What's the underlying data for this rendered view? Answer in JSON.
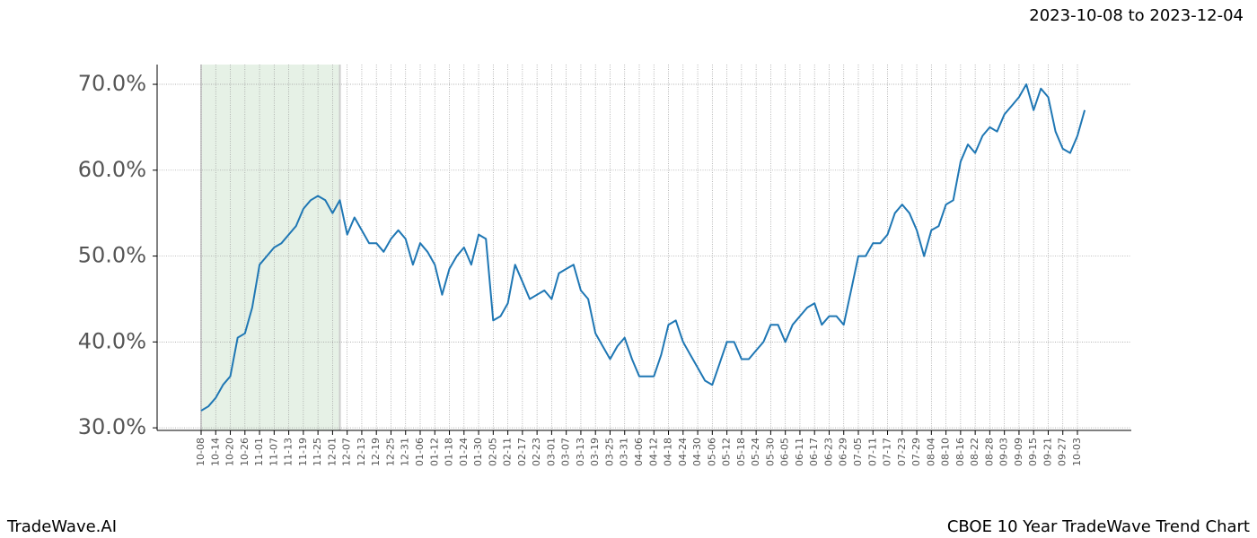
{
  "chart_data": {
    "type": "line",
    "title": "2023-10-08 to 2023-12-04",
    "footer_left": "TradeWave.AI",
    "footer_right": "CBOE 10 Year TradeWave Trend Chart",
    "categories": [
      "10-08",
      null,
      "10-14",
      null,
      "10-20",
      null,
      "10-26",
      null,
      "11-01",
      null,
      "11-07",
      null,
      "11-13",
      null,
      "11-19",
      null,
      "11-25",
      null,
      "12-01",
      null,
      "12-07",
      null,
      "12-13",
      null,
      "12-19",
      null,
      "12-25",
      null,
      "12-31",
      null,
      "01-06",
      null,
      "01-12",
      null,
      "01-18",
      null,
      "01-24",
      null,
      "01-30",
      null,
      "02-05",
      null,
      "02-11",
      null,
      "02-17",
      null,
      "02-23",
      null,
      "03-01",
      null,
      "03-07",
      null,
      "03-13",
      null,
      "03-19",
      null,
      "03-25",
      null,
      "03-31",
      null,
      "04-06",
      null,
      "04-12",
      null,
      "04-18",
      null,
      "04-24",
      null,
      "04-30",
      null,
      "05-06",
      null,
      "05-12",
      null,
      "05-18",
      null,
      "05-24",
      null,
      "05-30",
      null,
      "06-05",
      null,
      "06-11",
      null,
      "06-17",
      null,
      "06-23",
      null,
      "06-29",
      null,
      "07-05",
      null,
      "07-11",
      null,
      "07-17",
      null,
      "07-23",
      null,
      "07-29",
      null,
      "08-04",
      null,
      "08-10",
      null,
      "08-16",
      null,
      "08-22",
      null,
      "08-28",
      null,
      "09-03",
      null,
      "09-09",
      null,
      "09-15",
      null,
      "09-21",
      null,
      "09-27",
      null,
      "10-03",
      null
    ],
    "series": [
      {
        "color": "#1f77b4",
        "values": [
          32.0,
          32.5,
          33.5,
          35,
          36,
          40.5,
          41,
          44,
          49,
          50,
          51,
          51.5,
          52.5,
          53.5,
          55.5,
          56.5,
          57,
          56.5,
          55,
          56.5,
          52.5,
          54.5,
          53,
          51.5,
          51.5,
          50.5,
          52,
          53,
          52,
          49,
          51.5,
          50.5,
          49,
          45.5,
          48.5,
          50,
          51,
          49,
          52.5,
          52,
          42.5,
          43,
          44.5,
          49,
          47,
          45,
          45.5,
          46,
          45,
          48,
          48.5,
          49,
          46,
          45,
          41,
          39.5,
          38,
          39.5,
          40.5,
          38,
          36,
          36,
          36,
          38.5,
          42,
          42.5,
          40,
          38.5,
          37,
          35.5,
          35,
          37.5,
          40,
          40,
          38,
          38,
          39,
          40,
          42,
          42,
          40,
          42,
          43,
          44,
          44.5,
          42,
          43,
          43,
          42,
          46,
          50,
          50,
          51.5,
          51.5,
          52.5,
          55,
          56,
          55,
          53,
          50,
          53,
          53.5,
          56,
          56.5,
          61,
          63,
          62,
          64,
          65,
          64.5,
          66.5,
          67.5,
          68.5,
          70,
          67,
          69.5,
          68.5,
          64.5,
          62.5,
          62,
          64,
          67
        ]
      }
    ],
    "highlight": [
      "10-08",
      "12-01"
    ],
    "highlight_color": "#e6f1e6",
    "ylim": [
      29.7,
      72.3
    ],
    "yticks": [
      {
        "value": 30,
        "label": "30.0%"
      },
      {
        "value": 40,
        "label": "40.0%"
      },
      {
        "value": 50,
        "label": "50.0%"
      },
      {
        "value": 60,
        "label": "60.0%"
      },
      {
        "value": 70,
        "label": "70.0%"
      }
    ],
    "grid": true
  }
}
